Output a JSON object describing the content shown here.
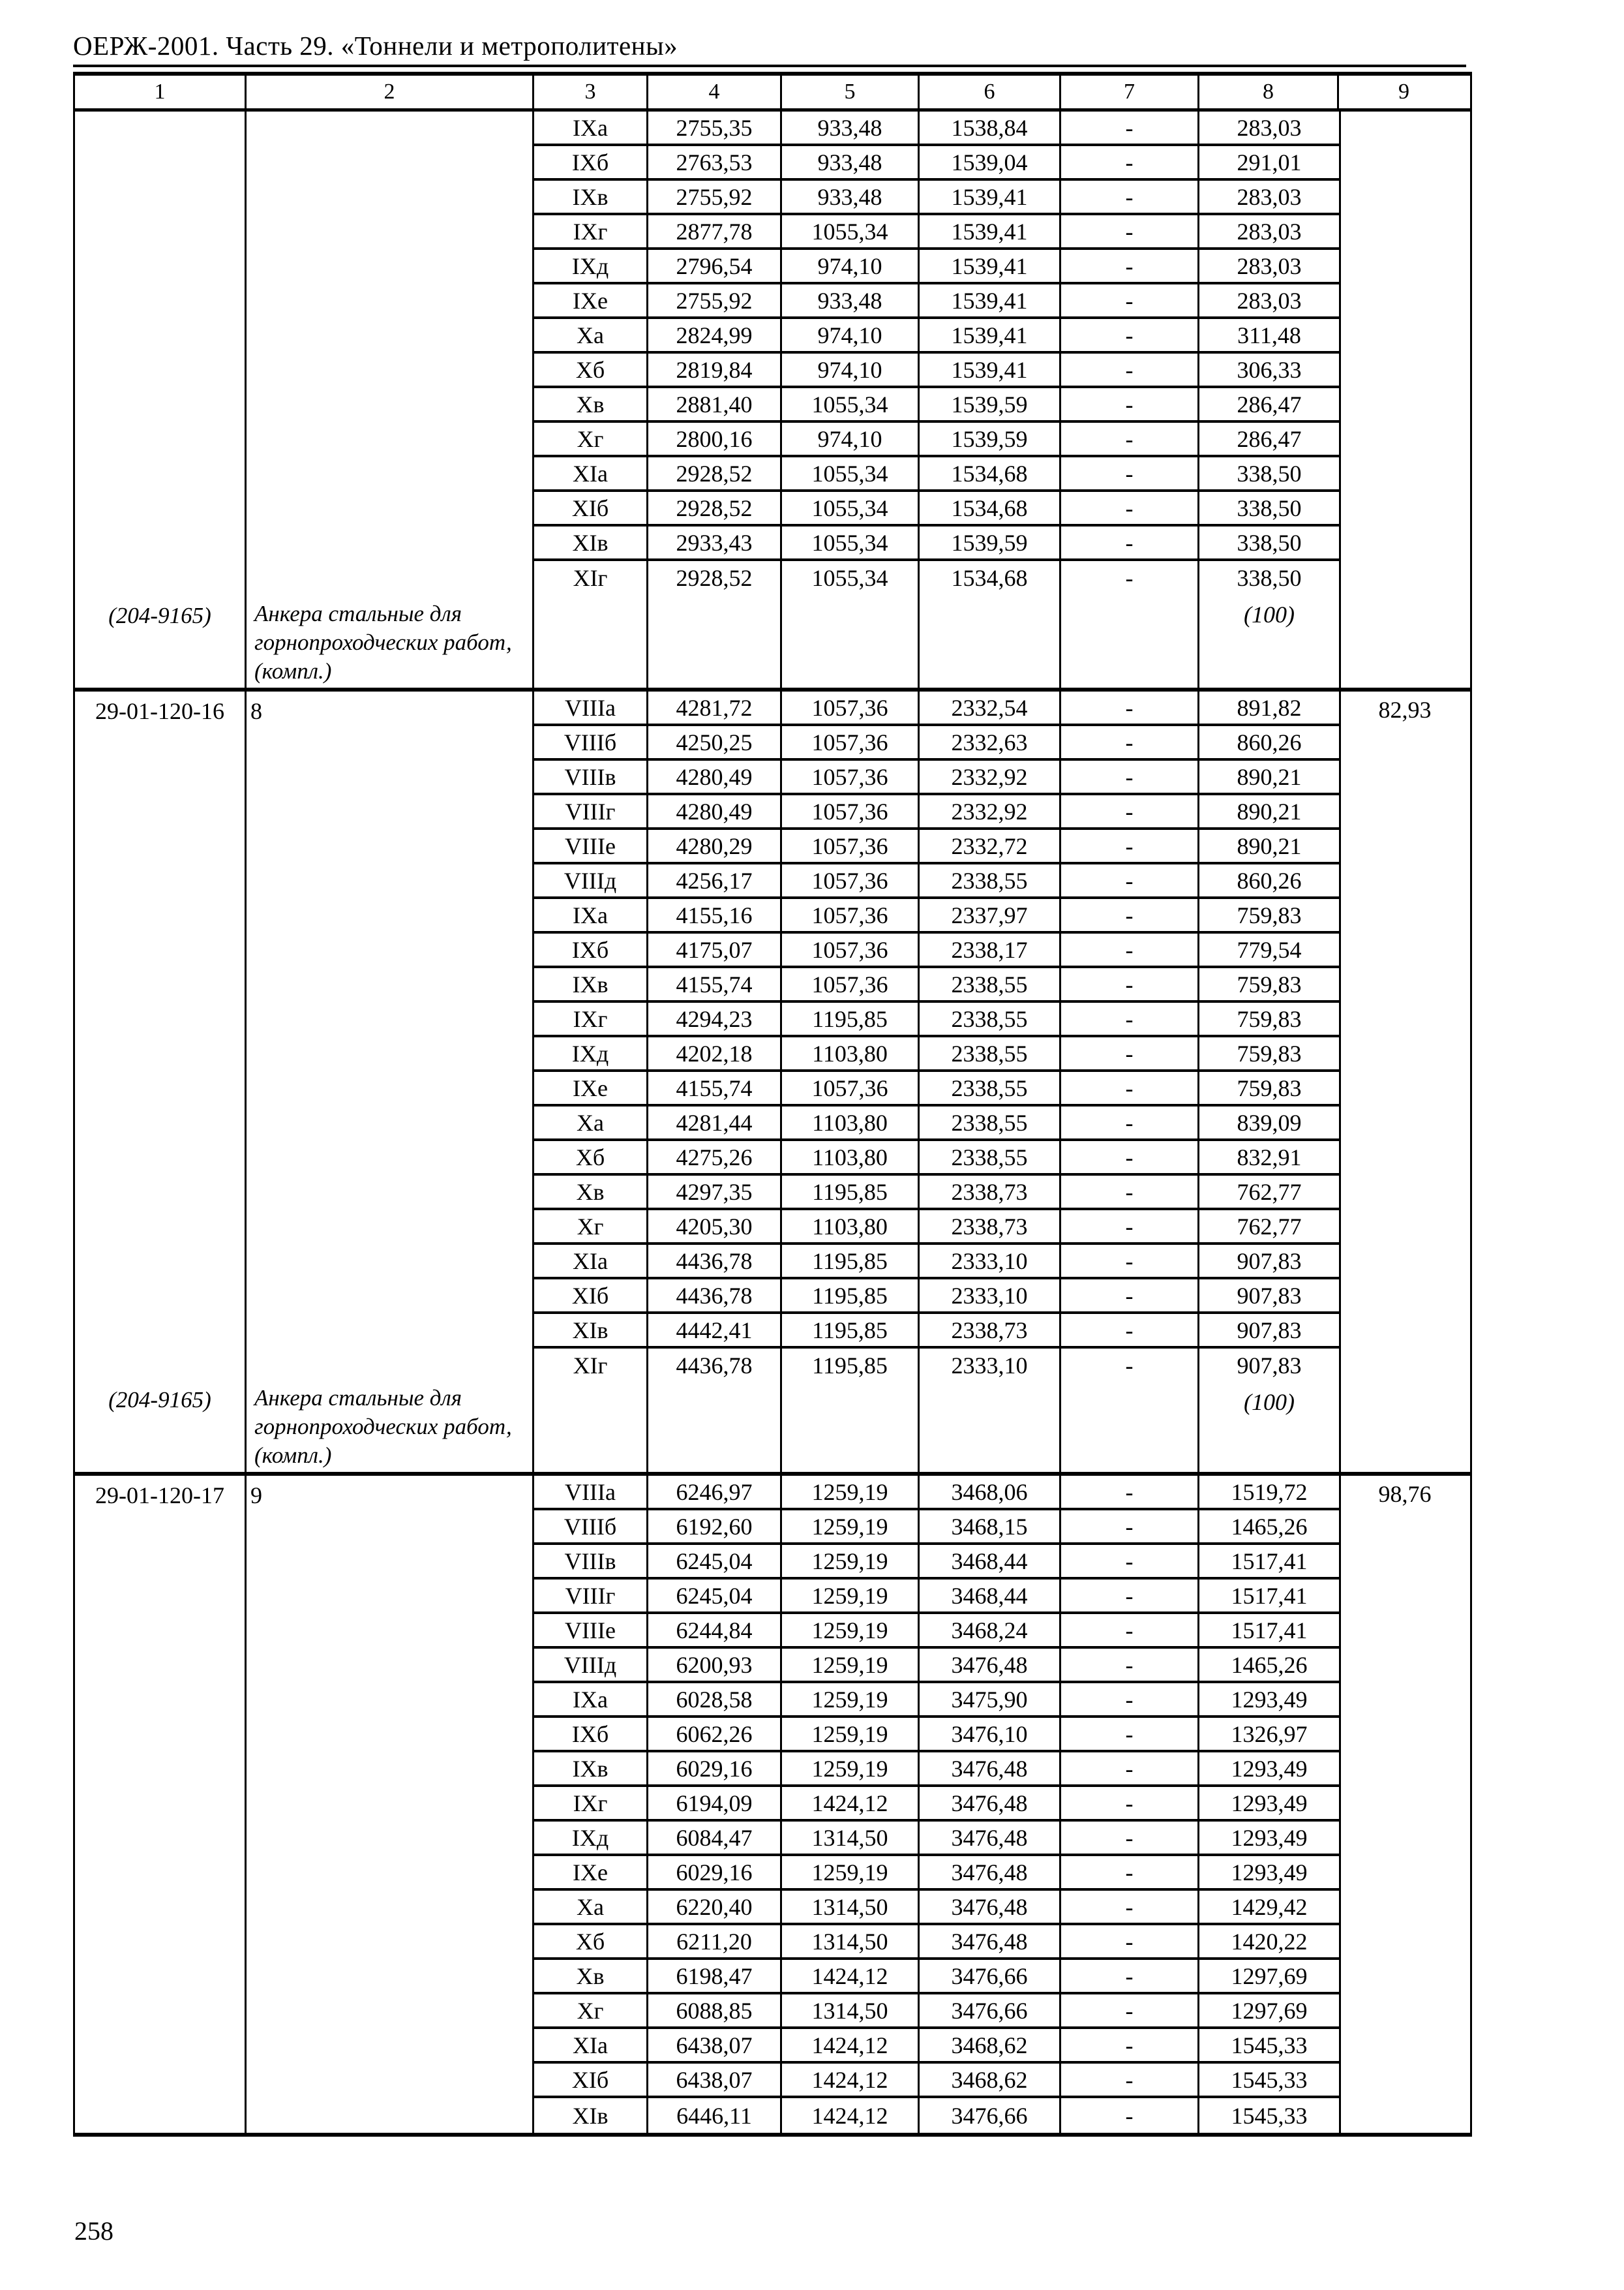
{
  "colors": {
    "text": "#000000",
    "background": "#ffffff",
    "border": "#000000"
  },
  "page": {
    "header_title": "ОЕРЖ-2001. Часть 29. «Тоннели и метрополитены»",
    "page_number": "258"
  },
  "table": {
    "column_headers": [
      "1",
      "2",
      "3",
      "4",
      "5",
      "6",
      "7",
      "8",
      "9"
    ],
    "sections": [
      {
        "code": "",
        "item_no": "",
        "vendor_code": "(204-9165)",
        "description": "Анкера стальные для горнопроходческих работ, (компл.)",
        "footnote": "(100)",
        "col9": "",
        "rows": [
          {
            "group": "IXа",
            "c4": "2755,35",
            "c5": "933,48",
            "c6": "1538,84",
            "c7": "-",
            "c8": "283,03"
          },
          {
            "group": "IXб",
            "c4": "2763,53",
            "c5": "933,48",
            "c6": "1539,04",
            "c7": "-",
            "c8": "291,01"
          },
          {
            "group": "IXв",
            "c4": "2755,92",
            "c5": "933,48",
            "c6": "1539,41",
            "c7": "-",
            "c8": "283,03"
          },
          {
            "group": "IXг",
            "c4": "2877,78",
            "c5": "1055,34",
            "c6": "1539,41",
            "c7": "-",
            "c8": "283,03"
          },
          {
            "group": "IXд",
            "c4": "2796,54",
            "c5": "974,10",
            "c6": "1539,41",
            "c7": "-",
            "c8": "283,03"
          },
          {
            "group": "IXе",
            "c4": "2755,92",
            "c5": "933,48",
            "c6": "1539,41",
            "c7": "-",
            "c8": "283,03"
          },
          {
            "group": "Xа",
            "c4": "2824,99",
            "c5": "974,10",
            "c6": "1539,41",
            "c7": "-",
            "c8": "311,48"
          },
          {
            "group": "Xб",
            "c4": "2819,84",
            "c5": "974,10",
            "c6": "1539,41",
            "c7": "-",
            "c8": "306,33"
          },
          {
            "group": "Xв",
            "c4": "2881,40",
            "c5": "1055,34",
            "c6": "1539,59",
            "c7": "-",
            "c8": "286,47"
          },
          {
            "group": "Xг",
            "c4": "2800,16",
            "c5": "974,10",
            "c6": "1539,59",
            "c7": "-",
            "c8": "286,47"
          },
          {
            "group": "XIа",
            "c4": "2928,52",
            "c5": "1055,34",
            "c6": "1534,68",
            "c7": "-",
            "c8": "338,50"
          },
          {
            "group": "XIб",
            "c4": "2928,52",
            "c5": "1055,34",
            "c6": "1534,68",
            "c7": "-",
            "c8": "338,50"
          },
          {
            "group": "XIв",
            "c4": "2933,43",
            "c5": "1055,34",
            "c6": "1539,59",
            "c7": "-",
            "c8": "338,50"
          },
          {
            "group": "XIг",
            "c4": "2928,52",
            "c5": "1055,34",
            "c6": "1534,68",
            "c7": "-",
            "c8": "338,50",
            "tall": true
          }
        ]
      },
      {
        "code": "29-01-120-16",
        "item_no": "8",
        "vendor_code": "(204-9165)",
        "description": "Анкера стальные для горнопроходческих работ, (компл.)",
        "footnote": "(100)",
        "col9": "82,93",
        "rows": [
          {
            "group": "VIIIа",
            "c4": "4281,72",
            "c5": "1057,36",
            "c6": "2332,54",
            "c7": "-",
            "c8": "891,82"
          },
          {
            "group": "VIIIб",
            "c4": "4250,25",
            "c5": "1057,36",
            "c6": "2332,63",
            "c7": "-",
            "c8": "860,26"
          },
          {
            "group": "VIIIв",
            "c4": "4280,49",
            "c5": "1057,36",
            "c6": "2332,92",
            "c7": "-",
            "c8": "890,21"
          },
          {
            "group": "VIIIг",
            "c4": "4280,49",
            "c5": "1057,36",
            "c6": "2332,92",
            "c7": "-",
            "c8": "890,21"
          },
          {
            "group": "VIIIе",
            "c4": "4280,29",
            "c5": "1057,36",
            "c6": "2332,72",
            "c7": "-",
            "c8": "890,21"
          },
          {
            "group": "VIIIд",
            "c4": "4256,17",
            "c5": "1057,36",
            "c6": "2338,55",
            "c7": "-",
            "c8": "860,26"
          },
          {
            "group": "IXа",
            "c4": "4155,16",
            "c5": "1057,36",
            "c6": "2337,97",
            "c7": "-",
            "c8": "759,83"
          },
          {
            "group": "IXб",
            "c4": "4175,07",
            "c5": "1057,36",
            "c6": "2338,17",
            "c7": "-",
            "c8": "779,54"
          },
          {
            "group": "IXв",
            "c4": "4155,74",
            "c5": "1057,36",
            "c6": "2338,55",
            "c7": "-",
            "c8": "759,83"
          },
          {
            "group": "IXг",
            "c4": "4294,23",
            "c5": "1195,85",
            "c6": "2338,55",
            "c7": "-",
            "c8": "759,83"
          },
          {
            "group": "IXд",
            "c4": "4202,18",
            "c5": "1103,80",
            "c6": "2338,55",
            "c7": "-",
            "c8": "759,83"
          },
          {
            "group": "IXе",
            "c4": "4155,74",
            "c5": "1057,36",
            "c6": "2338,55",
            "c7": "-",
            "c8": "759,83"
          },
          {
            "group": "Xа",
            "c4": "4281,44",
            "c5": "1103,80",
            "c6": "2338,55",
            "c7": "-",
            "c8": "839,09"
          },
          {
            "group": "Xб",
            "c4": "4275,26",
            "c5": "1103,80",
            "c6": "2338,55",
            "c7": "-",
            "c8": "832,91"
          },
          {
            "group": "Xв",
            "c4": "4297,35",
            "c5": "1195,85",
            "c6": "2338,73",
            "c7": "-",
            "c8": "762,77"
          },
          {
            "group": "Xг",
            "c4": "4205,30",
            "c5": "1103,80",
            "c6": "2338,73",
            "c7": "-",
            "c8": "762,77"
          },
          {
            "group": "XIа",
            "c4": "4436,78",
            "c5": "1195,85",
            "c6": "2333,10",
            "c7": "-",
            "c8": "907,83"
          },
          {
            "group": "XIб",
            "c4": "4436,78",
            "c5": "1195,85",
            "c6": "2333,10",
            "c7": "-",
            "c8": "907,83"
          },
          {
            "group": "XIв",
            "c4": "4442,41",
            "c5": "1195,85",
            "c6": "2338,73",
            "c7": "-",
            "c8": "907,83"
          },
          {
            "group": "XIг",
            "c4": "4436,78",
            "c5": "1195,85",
            "c6": "2333,10",
            "c7": "-",
            "c8": "907,83",
            "tall": true
          }
        ]
      },
      {
        "code": "29-01-120-17",
        "item_no": "9",
        "vendor_code": "",
        "description": "",
        "footnote": "",
        "col9": "98,76",
        "rows": [
          {
            "group": "VIIIа",
            "c4": "6246,97",
            "c5": "1259,19",
            "c6": "3468,06",
            "c7": "-",
            "c8": "1519,72"
          },
          {
            "group": "VIIIб",
            "c4": "6192,60",
            "c5": "1259,19",
            "c6": "3468,15",
            "c7": "-",
            "c8": "1465,26"
          },
          {
            "group": "VIIIв",
            "c4": "6245,04",
            "c5": "1259,19",
            "c6": "3468,44",
            "c7": "-",
            "c8": "1517,41"
          },
          {
            "group": "VIIIг",
            "c4": "6245,04",
            "c5": "1259,19",
            "c6": "3468,44",
            "c7": "-",
            "c8": "1517,41"
          },
          {
            "group": "VIIIе",
            "c4": "6244,84",
            "c5": "1259,19",
            "c6": "3468,24",
            "c7": "-",
            "c8": "1517,41"
          },
          {
            "group": "VIIIд",
            "c4": "6200,93",
            "c5": "1259,19",
            "c6": "3476,48",
            "c7": "-",
            "c8": "1465,26"
          },
          {
            "group": "IXа",
            "c4": "6028,58",
            "c5": "1259,19",
            "c6": "3475,90",
            "c7": "-",
            "c8": "1293,49"
          },
          {
            "group": "IXб",
            "c4": "6062,26",
            "c5": "1259,19",
            "c6": "3476,10",
            "c7": "-",
            "c8": "1326,97"
          },
          {
            "group": "IXв",
            "c4": "6029,16",
            "c5": "1259,19",
            "c6": "3476,48",
            "c7": "-",
            "c8": "1293,49"
          },
          {
            "group": "IXг",
            "c4": "6194,09",
            "c5": "1424,12",
            "c6": "3476,48",
            "c7": "-",
            "c8": "1293,49"
          },
          {
            "group": "IXд",
            "c4": "6084,47",
            "c5": "1314,50",
            "c6": "3476,48",
            "c7": "-",
            "c8": "1293,49"
          },
          {
            "group": "IXе",
            "c4": "6029,16",
            "c5": "1259,19",
            "c6": "3476,48",
            "c7": "-",
            "c8": "1293,49"
          },
          {
            "group": "Xа",
            "c4": "6220,40",
            "c5": "1314,50",
            "c6": "3476,48",
            "c7": "-",
            "c8": "1429,42"
          },
          {
            "group": "Xб",
            "c4": "6211,20",
            "c5": "1314,50",
            "c6": "3476,48",
            "c7": "-",
            "c8": "1420,22"
          },
          {
            "group": "Xв",
            "c4": "6198,47",
            "c5": "1424,12",
            "c6": "3476,66",
            "c7": "-",
            "c8": "1297,69"
          },
          {
            "group": "Xг",
            "c4": "6088,85",
            "c5": "1314,50",
            "c6": "3476,66",
            "c7": "-",
            "c8": "1297,69"
          },
          {
            "group": "XIа",
            "c4": "6438,07",
            "c5": "1424,12",
            "c6": "3468,62",
            "c7": "-",
            "c8": "1545,33"
          },
          {
            "group": "XIб",
            "c4": "6438,07",
            "c5": "1424,12",
            "c6": "3468,62",
            "c7": "-",
            "c8": "1545,33"
          },
          {
            "group": "XIв",
            "c4": "6446,11",
            "c5": "1424,12",
            "c6": "3476,66",
            "c7": "-",
            "c8": "1545,33"
          }
        ]
      }
    ]
  }
}
